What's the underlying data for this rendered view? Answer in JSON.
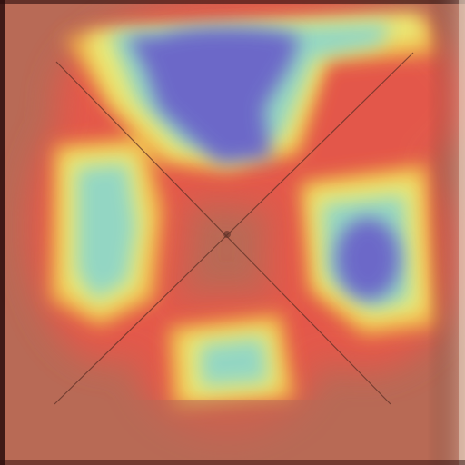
{
  "image": {
    "subject": "heatmap-overlay-on-square-panel",
    "palette": {
      "base": "#b86a56",
      "hot": "#e8574a",
      "warm": "#f2b74a",
      "yellow": "#eaf07a",
      "cool": "#8fd6c8",
      "cold": "#6a63c9",
      "frame_dark": "#2a0c0c",
      "frame_right": "#e8d8c8",
      "line": "#5a2e24"
    },
    "icons": [
      "diagonal-cross-lines"
    ]
  }
}
